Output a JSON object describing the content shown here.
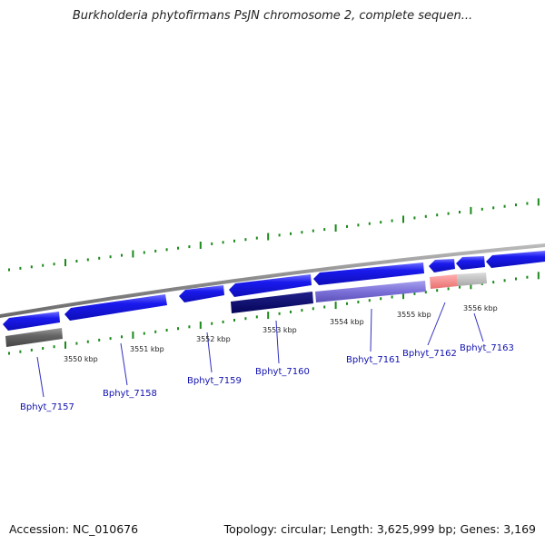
{
  "title": "Burkholderia phytofirmans PsJN chromosome 2, complete sequen...",
  "footer": {
    "accession": "Accession: NC_010676",
    "summary": "Topology: circular; Length: 3,625,999 bp; Genes: 3,169"
  },
  "colors": {
    "backbone": "#8a8a8a",
    "gene_blue": "#1a1aee",
    "tick_green": "#1a8a1a",
    "label_blue": "#1010b0",
    "leader": "#3030c0"
  },
  "kbp_labels": [
    "3550 kbp",
    "3551 kbp",
    "3552 kbp",
    "3553 kbp",
    "3554 kbp",
    "3555 kbp",
    "3556 kbp"
  ],
  "genes": [
    {
      "label": "Bphyt_7157"
    },
    {
      "label": "Bphyt_7158"
    },
    {
      "label": "Bphyt_7159"
    },
    {
      "label": "Bphyt_7160"
    },
    {
      "label": "Bphyt_7161"
    },
    {
      "label": "Bphyt_7162"
    },
    {
      "label": "Bphyt_7163"
    }
  ]
}
